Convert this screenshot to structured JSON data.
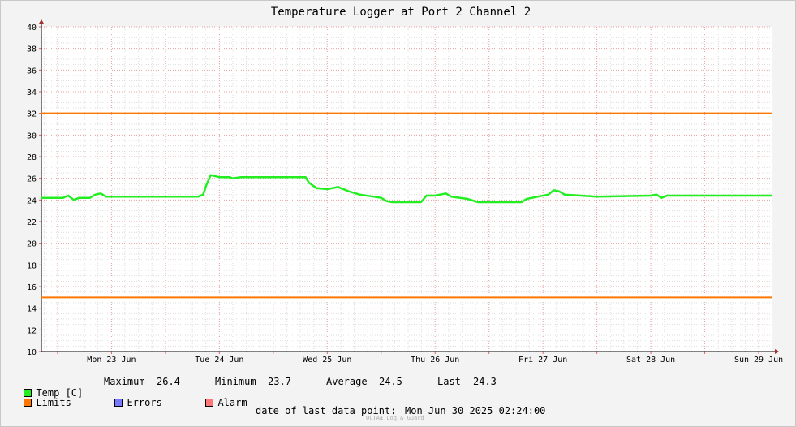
{
  "chart_data": {
    "type": "line",
    "title": "Temperature Logger at Port 2 Channel 2",
    "xlabel": "",
    "ylabel": "",
    "ylim": [
      10,
      40
    ],
    "yticks": [
      10,
      12,
      14,
      16,
      18,
      20,
      22,
      24,
      26,
      28,
      30,
      32,
      34,
      36,
      38,
      40
    ],
    "xlim": [
      -0.15,
      6.62
    ],
    "x_unit": "days from Mon 23 Jun 00:00",
    "day_labels": [
      "Mon 23 Jun",
      "Tue 24 Jun",
      "Wed 25 Jun",
      "Thu 26 Jun",
      "Fri 27 Jun",
      "Sat 28 Jun",
      "Sun 29 Jun"
    ],
    "grid": true,
    "series": [
      {
        "name": "Temp [C]",
        "color": "#22ee22",
        "points": [
          [
            -0.15,
            24.2
          ],
          [
            0.05,
            24.2
          ],
          [
            0.1,
            24.4
          ],
          [
            0.15,
            24.0
          ],
          [
            0.2,
            24.2
          ],
          [
            0.3,
            24.2
          ],
          [
            0.35,
            24.5
          ],
          [
            0.4,
            24.6
          ],
          [
            0.45,
            24.3
          ],
          [
            1.0,
            24.3
          ],
          [
            1.3,
            24.3
          ],
          [
            1.35,
            24.5
          ],
          [
            1.38,
            25.4
          ],
          [
            1.42,
            26.3
          ],
          [
            1.5,
            26.1
          ],
          [
            1.6,
            26.1
          ],
          [
            1.62,
            26.0
          ],
          [
            1.7,
            26.1
          ],
          [
            2.0,
            26.1
          ],
          [
            2.2,
            26.1
          ],
          [
            2.3,
            26.1
          ],
          [
            2.33,
            25.6
          ],
          [
            2.4,
            25.1
          ],
          [
            2.5,
            25.0
          ],
          [
            2.6,
            25.2
          ],
          [
            2.7,
            24.8
          ],
          [
            2.8,
            24.5
          ],
          [
            3.0,
            24.2
          ],
          [
            3.05,
            23.9
          ],
          [
            3.1,
            23.8
          ],
          [
            3.3,
            23.8
          ],
          [
            3.37,
            23.8
          ],
          [
            3.42,
            24.4
          ],
          [
            3.5,
            24.4
          ],
          [
            3.6,
            24.6
          ],
          [
            3.65,
            24.3
          ],
          [
            3.8,
            24.1
          ],
          [
            3.9,
            23.8
          ],
          [
            4.0,
            23.8
          ],
          [
            4.3,
            23.8
          ],
          [
            4.35,
            24.1
          ],
          [
            4.45,
            24.3
          ],
          [
            4.55,
            24.5
          ],
          [
            4.6,
            24.9
          ],
          [
            4.65,
            24.8
          ],
          [
            4.7,
            24.5
          ],
          [
            5.0,
            24.3
          ],
          [
            5.5,
            24.4
          ],
          [
            5.55,
            24.5
          ],
          [
            5.6,
            24.2
          ],
          [
            5.65,
            24.4
          ],
          [
            6.0,
            24.4
          ],
          [
            6.5,
            24.4
          ],
          [
            6.62,
            24.4
          ]
        ]
      },
      {
        "name": "Limits",
        "color": "#ff7700",
        "values": [
          32,
          15
        ]
      },
      {
        "name": "Errors",
        "color": "#7777ff",
        "values": []
      },
      {
        "name": "Alarm",
        "color": "#ff7777",
        "values": []
      }
    ],
    "stats": {
      "maximum_label": "Maximum",
      "maximum": "26.4",
      "minimum_label": "Minimum",
      "minimum": "23.7",
      "average_label": "Average",
      "average": "24.5",
      "last_label": "Last",
      "last": "24.3"
    },
    "last_data_label": "date of last data point:",
    "last_data_value": "Mon Jun 30 2025 02:24:00",
    "watermark": "OCTAÆ Log & Guard"
  }
}
